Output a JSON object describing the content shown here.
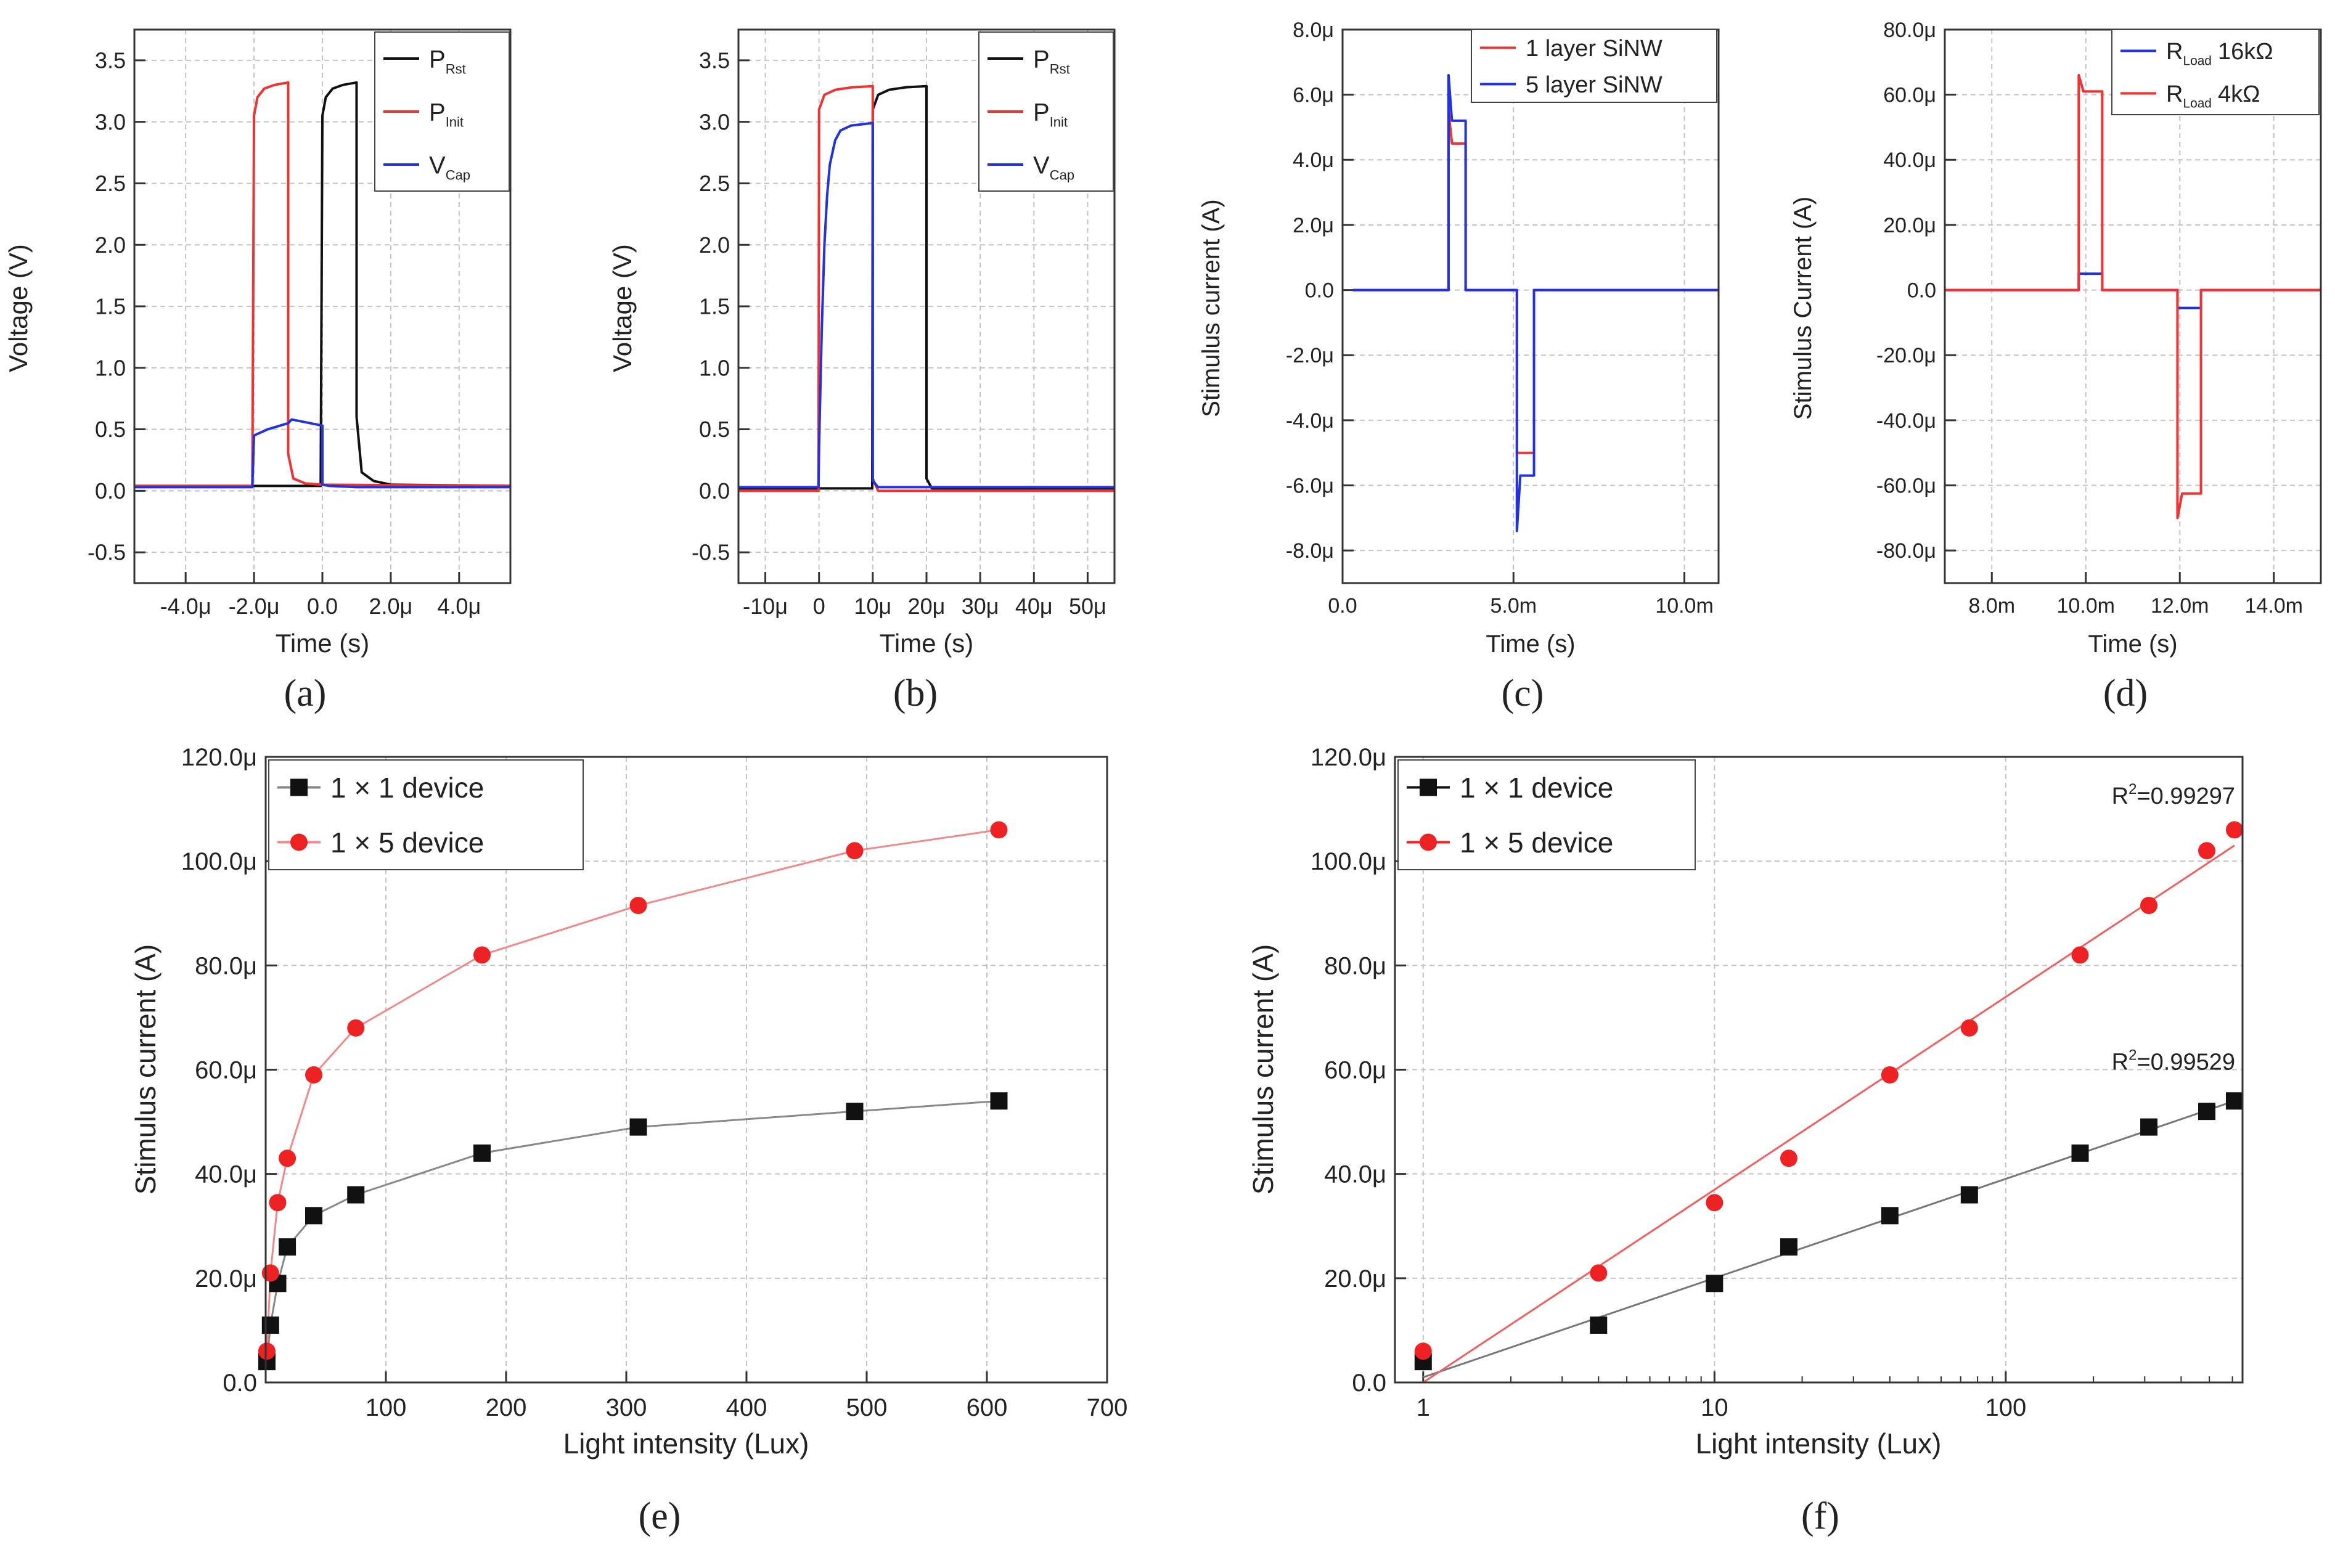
{
  "chart_data": [
    {
      "id": "a",
      "type": "line",
      "caption": "(a)",
      "xlabel": "Time (s)",
      "ylabel": "Voltage (V)",
      "xlim": [
        -5.5,
        5.5
      ],
      "ylim": [
        -0.75,
        3.75
      ],
      "xticks": [
        -4,
        -2,
        0,
        2,
        4
      ],
      "xtick_labels": [
        "-4.0μ",
        "-2.0μ",
        "0.0",
        "2.0μ",
        "4.0μ"
      ],
      "yticks": [
        -0.5,
        0,
        0.5,
        1,
        1.5,
        2,
        2.5,
        3,
        3.5
      ],
      "ytick_labels": [
        "-0.5",
        "0.0",
        "0.5",
        "1.0",
        "1.5",
        "2.0",
        "2.5",
        "3.0",
        "3.5"
      ],
      "legend": [
        {
          "main": "P",
          "sub": "Rst",
          "color": "#111111"
        },
        {
          "main": "P",
          "sub": "Init",
          "color": "#ee3333"
        },
        {
          "main": "V",
          "sub": "Cap",
          "color": "#2233dd"
        }
      ],
      "series": [
        {
          "name": "PRst",
          "color": "#111111",
          "x": [
            -5.5,
            -0.05,
            0.0,
            0.1,
            0.3,
            0.6,
            1.0,
            1.0,
            1.15,
            1.5,
            2.0,
            5.5
          ],
          "y": [
            0.04,
            0.04,
            3.05,
            3.2,
            3.27,
            3.3,
            3.32,
            0.6,
            0.15,
            0.08,
            0.05,
            0.04
          ]
        },
        {
          "name": "PInit",
          "color": "#ee3333",
          "x": [
            -5.5,
            -2.05,
            -2.0,
            -1.9,
            -1.7,
            -1.4,
            -1.0,
            -1.0,
            -0.85,
            -0.5,
            0.0,
            5.5
          ],
          "y": [
            0.04,
            0.04,
            3.05,
            3.2,
            3.27,
            3.3,
            3.32,
            0.3,
            0.1,
            0.06,
            0.05,
            0.04
          ]
        },
        {
          "name": "VCap",
          "color": "#2233dd",
          "x": [
            -5.5,
            -2.05,
            -2.0,
            -1.6,
            -1.0,
            -0.9,
            0.0,
            0.0,
            0.2,
            1.0,
            5.5
          ],
          "y": [
            0.03,
            0.03,
            0.45,
            0.5,
            0.55,
            0.58,
            0.53,
            0.05,
            0.04,
            0.03,
            0.03
          ]
        }
      ]
    },
    {
      "id": "b",
      "type": "line",
      "caption": "(b)",
      "xlabel": "Time (s)",
      "ylabel": "Voltage (V)",
      "xlim": [
        -15,
        55
      ],
      "ylim": [
        -0.75,
        3.75
      ],
      "xticks": [
        -10,
        0,
        10,
        20,
        30,
        40,
        50
      ],
      "xtick_labels": [
        "-10μ",
        "0",
        "10μ",
        "20μ",
        "30μ",
        "40μ",
        "50μ"
      ],
      "yticks": [
        -0.5,
        0,
        0.5,
        1,
        1.5,
        2,
        2.5,
        3,
        3.5
      ],
      "ytick_labels": [
        "-0.5",
        "0.0",
        "0.5",
        "1.0",
        "1.5",
        "2.0",
        "2.5",
        "3.0",
        "3.5"
      ],
      "legend": [
        {
          "main": "P",
          "sub": "Rst",
          "color": "#111111"
        },
        {
          "main": "P",
          "sub": "Init",
          "color": "#ee3333"
        },
        {
          "main": "V",
          "sub": "Cap",
          "color": "#2233dd"
        }
      ],
      "series": [
        {
          "name": "PRst",
          "color": "#111111",
          "x": [
            -15,
            9.9,
            10.0,
            11,
            13,
            16,
            20.0,
            20.0,
            21,
            55
          ],
          "y": [
            0.02,
            0.02,
            3.1,
            3.22,
            3.26,
            3.28,
            3.29,
            0.1,
            0.02,
            0.02
          ]
        },
        {
          "name": "PInit",
          "color": "#ee3333",
          "x": [
            -15,
            -0.1,
            0.0,
            1,
            3,
            6,
            10.0,
            10.0,
            11,
            55
          ],
          "y": [
            0.0,
            0.0,
            3.1,
            3.22,
            3.26,
            3.28,
            3.29,
            0.1,
            0.0,
            0.0
          ]
        },
        {
          "name": "VCap",
          "color": "#2233dd",
          "x": [
            -15,
            -0.1,
            0.0,
            0.5,
            1,
            1.5,
            2,
            3,
            4,
            6,
            8,
            10.0,
            10.0,
            11,
            55
          ],
          "y": [
            0.03,
            0.03,
            0.35,
            1.3,
            2.0,
            2.4,
            2.65,
            2.85,
            2.93,
            2.97,
            2.98,
            2.99,
            0.08,
            0.03,
            0.03
          ]
        }
      ]
    },
    {
      "id": "c",
      "type": "line",
      "caption": "(c)",
      "xlabel": "Time (s)",
      "ylabel": "Stimulus current (A)",
      "xlim": [
        0,
        11
      ],
      "ylim": [
        -9,
        8
      ],
      "xticks": [
        0,
        5,
        10
      ],
      "xtick_labels": [
        "0.0",
        "5.0m",
        "10.0m"
      ],
      "yticks": [
        -8,
        -6,
        -4,
        -2,
        0,
        2,
        4,
        6,
        8
      ],
      "ytick_labels": [
        "-8.0μ",
        "-6.0μ",
        "-4.0μ",
        "-2.0μ",
        "0.0",
        "2.0μ",
        "4.0μ",
        "6.0μ",
        "8.0μ"
      ],
      "legend": [
        {
          "main": "1 layer SiNW",
          "sub": "",
          "color": "#ee3333"
        },
        {
          "main": "5 layer SiNW",
          "sub": "",
          "color": "#2233dd"
        }
      ],
      "series": [
        {
          "name": "1 layer SiNW",
          "color": "#ee3333",
          "x": [
            0.3,
            3.1,
            3.1,
            3.2,
            3.6,
            3.6,
            5.1,
            5.1,
            5.6,
            5.6,
            11
          ],
          "y": [
            0,
            0,
            5.5,
            4.5,
            4.5,
            0,
            0,
            -5.0,
            -5.0,
            0,
            0
          ]
        },
        {
          "name": "5 layer SiNW",
          "color": "#2233dd",
          "x": [
            0.3,
            3.1,
            3.1,
            3.2,
            3.6,
            3.6,
            5.1,
            5.1,
            5.2,
            5.6,
            5.6,
            11
          ],
          "y": [
            0,
            0,
            6.6,
            5.2,
            5.2,
            0,
            0,
            -7.4,
            -5.7,
            -5.7,
            0,
            0
          ]
        }
      ]
    },
    {
      "id": "d",
      "type": "line",
      "caption": "(d)",
      "xlabel": "Time (s)",
      "ylabel": "Stimulus Current (A)",
      "xlim": [
        7,
        15
      ],
      "ylim": [
        -90,
        80
      ],
      "xticks": [
        8,
        10,
        12,
        14
      ],
      "xtick_labels": [
        "8.0m",
        "10.0m",
        "12.0m",
        "14.0m"
      ],
      "yticks": [
        -80,
        -60,
        -40,
        -20,
        0,
        20,
        40,
        60,
        80
      ],
      "ytick_labels": [
        "-80.0μ",
        "-60.0μ",
        "-40.0μ",
        "-20.0μ",
        "0.0",
        "20.0μ",
        "40.0μ",
        "60.0μ",
        "80.0μ"
      ],
      "legend": [
        {
          "main": "R",
          "sub": "Load",
          "tail": "16kΩ",
          "color": "#2233dd"
        },
        {
          "main": "R",
          "sub": "Load",
          "tail": "4kΩ",
          "color": "#ee3333"
        }
      ],
      "series": [
        {
          "name": "RLoad 16kΩ",
          "color": "#2233dd",
          "x": [
            7,
            9.85,
            9.85,
            10.35,
            10.35,
            11.95,
            11.95,
            12.45,
            12.45,
            15
          ],
          "y": [
            0,
            0,
            5,
            5,
            0,
            0,
            -5.5,
            -5.5,
            0,
            0
          ]
        },
        {
          "name": "RLoad 4kΩ",
          "color": "#ee3333",
          "x": [
            7,
            9.85,
            9.85,
            9.95,
            10.35,
            10.35,
            11.95,
            11.95,
            12.05,
            12.45,
            12.45,
            15
          ],
          "y": [
            0,
            0,
            66,
            61,
            61,
            0,
            0,
            -70,
            -62.5,
            -62.5,
            0,
            0
          ]
        }
      ]
    },
    {
      "id": "e",
      "type": "line",
      "caption": "(e)",
      "xlabel": "Light intensity (Lux)",
      "ylabel": "Stimulus current (A)",
      "xlim": [
        0,
        700
      ],
      "ylim": [
        0,
        120
      ],
      "xticks": [
        100,
        200,
        300,
        400,
        500,
        600,
        700
      ],
      "xtick_labels": [
        "100",
        "200",
        "300",
        "400",
        "500",
        "600",
        "700"
      ],
      "yticks": [
        0,
        20,
        40,
        60,
        80,
        100,
        120
      ],
      "ytick_labels": [
        "0.0",
        "20.0μ",
        "40.0μ",
        "60.0μ",
        "80.0μ",
        "100.0μ",
        "120.0μ"
      ],
      "legend": [
        {
          "main": "1 × 1 device",
          "sub": "",
          "color": "#111111",
          "marker": "square"
        },
        {
          "main": "1 × 5 device",
          "sub": "",
          "color": "#ee2222",
          "marker": "circle"
        }
      ],
      "series": [
        {
          "name": "1 × 1 device",
          "color": "#111111",
          "line_color": "#888888",
          "marker": "square",
          "x": [
            1,
            4,
            10,
            18,
            40,
            75,
            180,
            310,
            490,
            610
          ],
          "y": [
            4,
            11,
            19,
            26,
            32,
            36,
            44,
            49,
            52,
            54
          ]
        },
        {
          "name": "1 × 5 device",
          "color": "#ee2222",
          "line_color": "#f08a8a",
          "marker": "circle",
          "x": [
            1,
            4,
            10,
            18,
            40,
            75,
            180,
            310,
            490,
            610
          ],
          "y": [
            6,
            21,
            34.5,
            43,
            59,
            68,
            82,
            91.5,
            102,
            106
          ]
        }
      ]
    },
    {
      "id": "f",
      "type": "scatter",
      "caption": "(f)",
      "xscale": "log",
      "xlabel": "Light intensity (Lux)",
      "ylabel": "Stimulus current (A)",
      "xlim": [
        0.8,
        650
      ],
      "ylim": [
        0,
        120
      ],
      "xticks": [
        1,
        10,
        100
      ],
      "xtick_labels": [
        "1",
        "10",
        "100"
      ],
      "yticks": [
        0,
        20,
        40,
        60,
        80,
        100,
        120
      ],
      "ytick_labels": [
        "0.0",
        "20.0μ",
        "40.0μ",
        "60.0μ",
        "80.0μ",
        "100.0μ",
        "120.0μ"
      ],
      "legend": [
        {
          "main": "1 × 1 device",
          "sub": "",
          "color": "#111111",
          "marker": "square"
        },
        {
          "main": "1 × 5 device",
          "sub": "",
          "color": "#ee2222",
          "marker": "circle"
        }
      ],
      "series": [
        {
          "name": "1 × 1 device",
          "color": "#111111",
          "marker": "square",
          "x": [
            1,
            4,
            10,
            18,
            40,
            75,
            180,
            310,
            490,
            610
          ],
          "y": [
            4,
            11,
            19,
            26,
            32,
            36,
            44,
            49,
            52,
            54
          ],
          "fit": {
            "x": [
              1,
              610
            ],
            "y": [
              1,
              54
            ],
            "color": "#777777"
          }
        },
        {
          "name": "1 × 5 device",
          "color": "#ee2222",
          "marker": "circle",
          "x": [
            1,
            4,
            10,
            18,
            40,
            75,
            180,
            310,
            490,
            610
          ],
          "y": [
            6,
            21,
            34.5,
            43,
            59,
            68,
            82,
            91.5,
            102,
            106
          ],
          "fit": {
            "x": [
              1,
              610
            ],
            "y": [
              0,
              103
            ],
            "color": "#f06060"
          }
        }
      ],
      "annotations": [
        {
          "prefix": "R",
          "sup": "2",
          "suffix": "=0.99297",
          "at_x": 300,
          "at_y": 111
        },
        {
          "prefix": "R",
          "sup": "2",
          "suffix": "=0.99529",
          "at_x": 300,
          "at_y": 60
        }
      ]
    }
  ]
}
